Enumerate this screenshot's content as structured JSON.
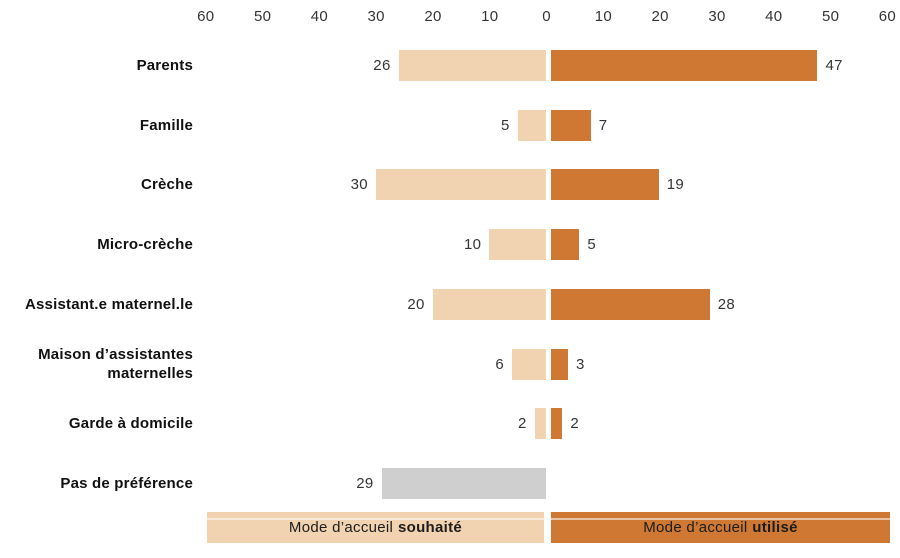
{
  "chart_data": {
    "type": "bar",
    "variant": "diverging-horizontal",
    "title": "",
    "axis_ticks": [
      "60",
      "50",
      "40",
      "30",
      "20",
      "10",
      "0",
      "10",
      "20",
      "30",
      "40",
      "50",
      "60"
    ],
    "axis_range_each_side": [
      0,
      60
    ],
    "grid": "off",
    "categories": [
      "Parents",
      "Famille",
      "Crèche",
      "Micro-crèche",
      "Assistant.e maternel.le",
      "Maison d’assistantes maternelles",
      "Garde à domicile",
      "Pas de préférence"
    ],
    "series": [
      {
        "name": "Mode d’accueil souhaité",
        "side": "left",
        "color": "#F1D2B1",
        "values": [
          26,
          5,
          30,
          10,
          20,
          6,
          2,
          29
        ]
      },
      {
        "name": "Mode d’accueil utilisé",
        "side": "right",
        "color": "#CE7833",
        "values": [
          47,
          7,
          19,
          5,
          28,
          3,
          2,
          null
        ]
      }
    ],
    "special_bar": {
      "category": "Pas de préférence",
      "color": "#CFCFCF"
    },
    "legend": [
      {
        "prefix": "Mode d’accueil",
        "bold": "souhaité",
        "color": "#F1D2B1",
        "position": "bottom-left"
      },
      {
        "prefix": "Mode d’accueil",
        "bold": "utilisé",
        "color": "#CE7833",
        "position": "bottom-right"
      }
    ],
    "colors": {
      "wished": "#F1D2B1",
      "used": "#CE7833",
      "no_preference": "#CFCFCF",
      "text": "#353535"
    }
  }
}
